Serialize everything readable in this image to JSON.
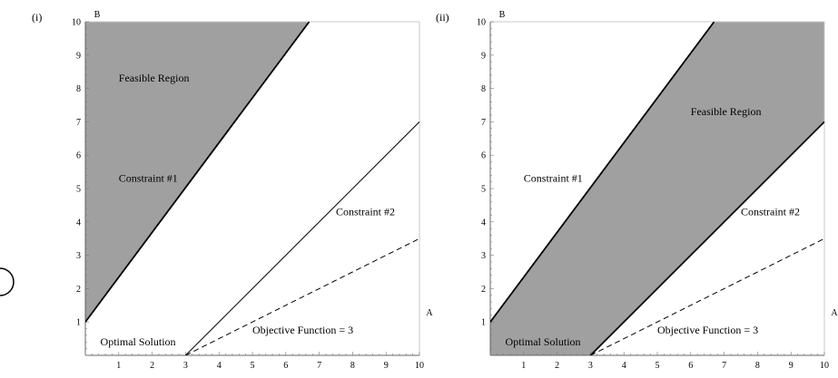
{
  "chart_data": [
    {
      "type": "line",
      "panel_label": "(i)",
      "xlabel": "A",
      "ylabel": "B",
      "xlim": [
        0,
        10
      ],
      "ylim": [
        0,
        10
      ],
      "xticks": [
        1,
        2,
        3,
        4,
        5,
        6,
        7,
        8,
        9,
        10
      ],
      "yticks": [
        1,
        2,
        3,
        4,
        5,
        6,
        7,
        8,
        9,
        10
      ],
      "lines": [
        {
          "name": "Constraint #1",
          "style": "solid",
          "weight": "thick",
          "points": [
            [
              0,
              1
            ],
            [
              6.7,
              10
            ]
          ]
        },
        {
          "name": "Constraint #2",
          "style": "solid",
          "weight": "thin",
          "points": [
            [
              3,
              0
            ],
            [
              10,
              7
            ]
          ]
        },
        {
          "name": "Objective Function = 3",
          "style": "dashed",
          "weight": "thin",
          "points": [
            [
              3,
              0
            ],
            [
              10,
              3.5
            ]
          ]
        }
      ],
      "feasible_region": {
        "color": "#a0a0a0",
        "points": [
          [
            0,
            1
          ],
          [
            6.7,
            10
          ],
          [
            0,
            10
          ]
        ]
      },
      "annotations": [
        {
          "text": "Feasible Region",
          "x": 1,
          "y": 8.2
        },
        {
          "text": "Constraint #1",
          "x": 1,
          "y": 5.2
        },
        {
          "text": "Constraint #2",
          "x": 7.5,
          "y": 4.2
        },
        {
          "text": "Objective Function = 3",
          "x": 5,
          "y": 0.65
        },
        {
          "text": "Optimal Solution",
          "x": 0.45,
          "y": 0.3
        }
      ]
    },
    {
      "type": "line",
      "panel_label": "(ii)",
      "xlabel": "A",
      "ylabel": "B",
      "xlim": [
        0,
        10
      ],
      "ylim": [
        0,
        10
      ],
      "xticks": [
        1,
        2,
        3,
        4,
        5,
        6,
        7,
        8,
        9,
        10
      ],
      "yticks": [
        1,
        2,
        3,
        4,
        5,
        6,
        7,
        8,
        9,
        10
      ],
      "lines": [
        {
          "name": "Constraint #1",
          "style": "solid",
          "weight": "thick",
          "points": [
            [
              0,
              1
            ],
            [
              6.7,
              10
            ]
          ]
        },
        {
          "name": "Constraint #2",
          "style": "solid",
          "weight": "thick",
          "points": [
            [
              3,
              0
            ],
            [
              10,
              7
            ]
          ]
        },
        {
          "name": "Objective Function = 3",
          "style": "dashed",
          "weight": "thin",
          "points": [
            [
              3,
              0
            ],
            [
              10,
              3.5
            ]
          ]
        }
      ],
      "feasible_region": {
        "color": "#a0a0a0",
        "points": [
          [
            0,
            0
          ],
          [
            3,
            0
          ],
          [
            10,
            7
          ],
          [
            10,
            10
          ],
          [
            6.7,
            10
          ],
          [
            0,
            1
          ]
        ]
      },
      "annotations": [
        {
          "text": "Feasible Region",
          "x": 6,
          "y": 7.2
        },
        {
          "text": "Constraint #1",
          "x": 1,
          "y": 5.2
        },
        {
          "text": "Constraint #2",
          "x": 7.5,
          "y": 4.2
        },
        {
          "text": "Objective Function = 3",
          "x": 5,
          "y": 0.65
        },
        {
          "text": "Optimal Solution",
          "x": 0.45,
          "y": 0.3
        }
      ]
    }
  ]
}
